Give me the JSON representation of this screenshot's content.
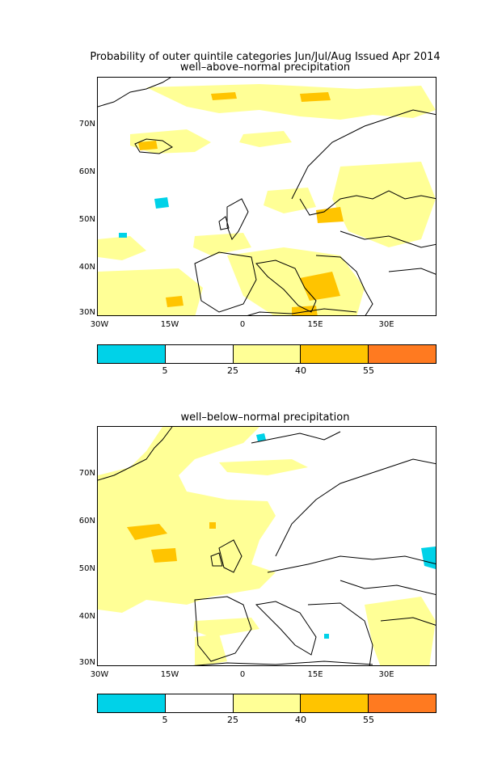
{
  "header": {
    "title": "Probability of outer quintile categories Jun/Jul/Aug Issued Apr 2014"
  },
  "panels": [
    {
      "subtitle": "well–above–normal precipitation",
      "lat_labels": [
        "70N",
        "60N",
        "50N",
        "40N",
        "30N"
      ],
      "lon_labels": [
        "30W",
        "15W",
        "0",
        "15E",
        "30E"
      ]
    },
    {
      "subtitle": "well–below–normal precipitation",
      "lat_labels": [
        "70N",
        "60N",
        "50N",
        "40N",
        "30N"
      ],
      "lon_labels": [
        "30W",
        "15W",
        "0",
        "15E",
        "30E"
      ]
    }
  ],
  "colorbar": {
    "colors": [
      "#00d2e8",
      "#ffffff",
      "#ffff96",
      "#ffc400",
      "#ff7a20"
    ],
    "ticks": [
      "5",
      "25",
      "40",
      "55"
    ]
  }
}
